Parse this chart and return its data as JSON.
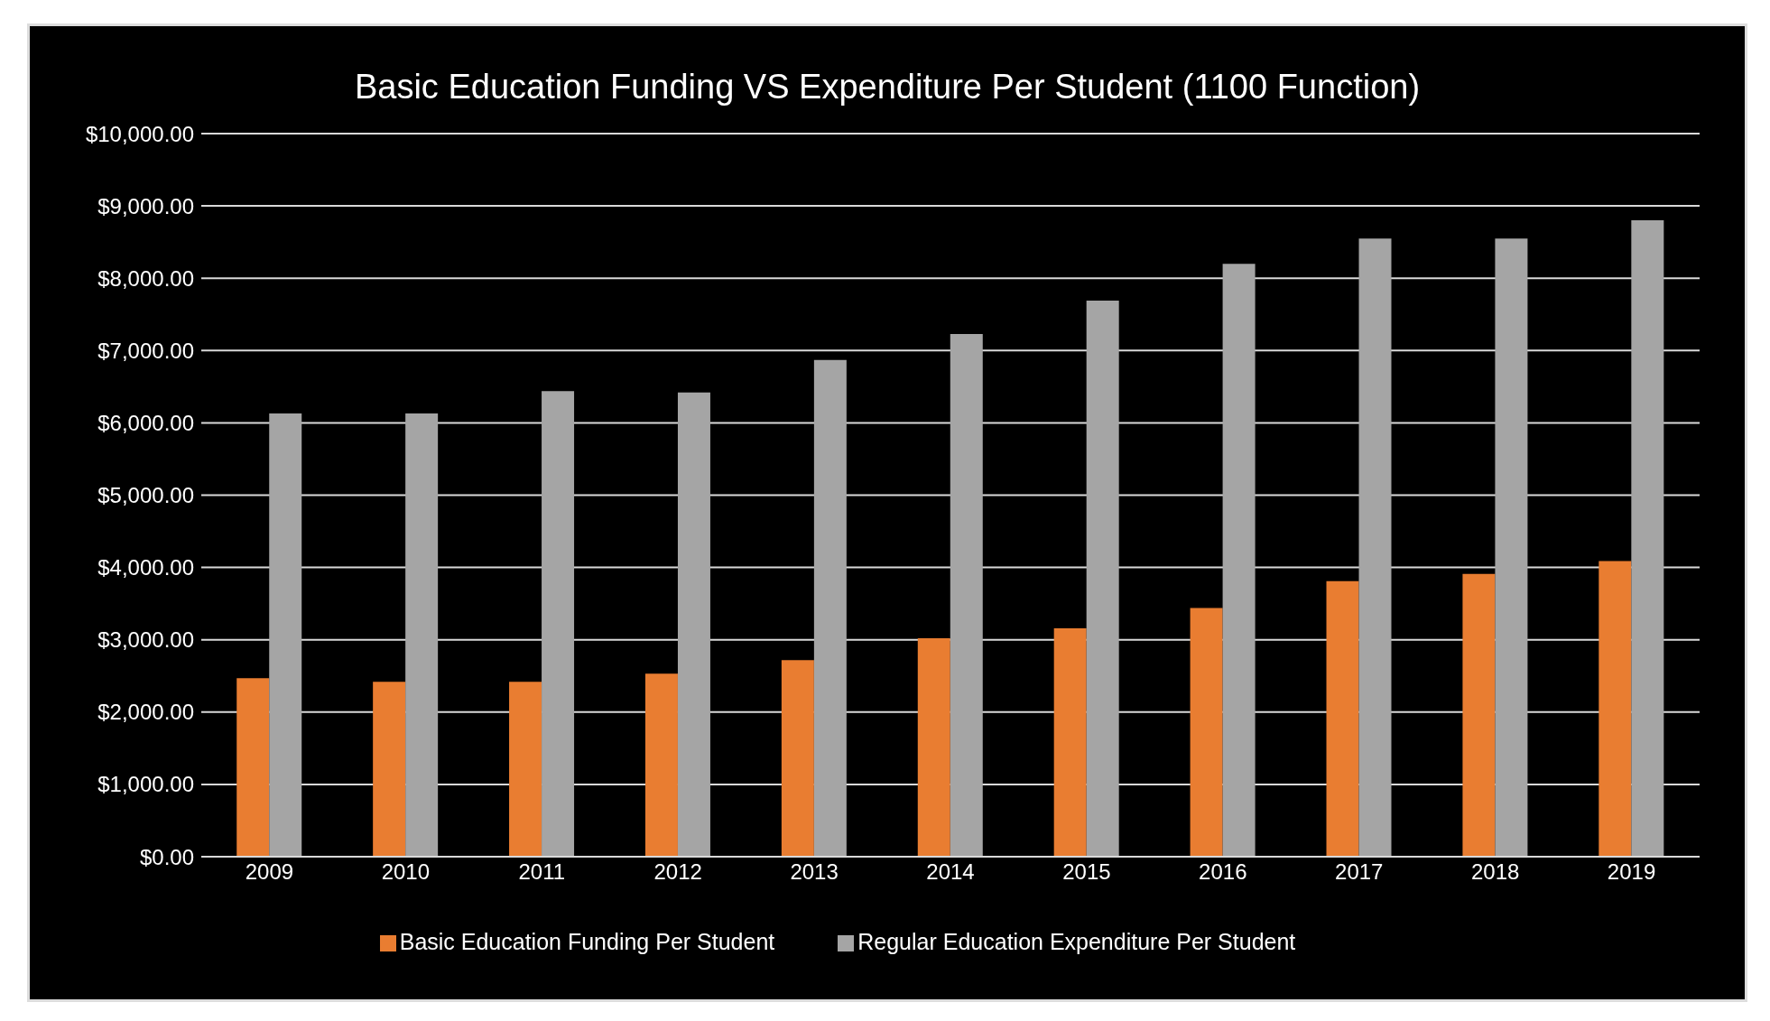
{
  "chart_data": {
    "type": "bar",
    "title": "Basic Education Funding VS Expenditure Per Student (1100 Function)",
    "categories": [
      "2009",
      "2010",
      "2011",
      "2012",
      "2013",
      "2014",
      "2015",
      "2016",
      "2017",
      "2018",
      "2019"
    ],
    "series": [
      {
        "name": "Basic Education Funding Per Student",
        "color": "#e97d31",
        "values": [
          2470,
          2420,
          2420,
          2530,
          2720,
          3020,
          3160,
          3440,
          3810,
          3910,
          4090
        ]
      },
      {
        "name": "Regular Education Expenditure Per Student",
        "color": "#a5a5a5",
        "values": [
          6130,
          6130,
          6440,
          6420,
          6870,
          7230,
          7690,
          8200,
          8550,
          8550,
          8800
        ]
      }
    ],
    "ylim": [
      0,
      10000
    ],
    "yticks": [
      {
        "value": 0,
        "label": "$0.00"
      },
      {
        "value": 1000,
        "label": "$1,000.00"
      },
      {
        "value": 2000,
        "label": "$2,000.00"
      },
      {
        "value": 3000,
        "label": "$3,000.00"
      },
      {
        "value": 4000,
        "label": "$4,000.00"
      },
      {
        "value": 5000,
        "label": "$5,000.00"
      },
      {
        "value": 6000,
        "label": "$6,000.00"
      },
      {
        "value": 7000,
        "label": "$7,000.00"
      },
      {
        "value": 8000,
        "label": "$8,000.00"
      },
      {
        "value": 9000,
        "label": "$9,000.00"
      },
      {
        "value": 10000,
        "label": "$10,000.00"
      }
    ],
    "grid": "y",
    "legend": "bottom"
  }
}
